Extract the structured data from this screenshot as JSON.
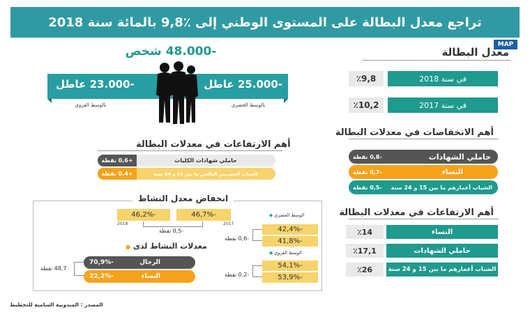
{
  "header": {
    "title": "تراجع معدل البطالة على المستوى الوطني إلى ٪9,8 بالمائة سنة 2018"
  },
  "logo": {
    "text": "MAP"
  },
  "unemployment_rate": {
    "title": "معدل البطالة",
    "rows": [
      {
        "label": "في سنة 2018",
        "value": "٪9,8"
      },
      {
        "label": "في سنة 2017",
        "value": "٪10,2"
      }
    ]
  },
  "persons": {
    "total": "-48.000 شخص",
    "urban": {
      "value": "-25.000 عاطل",
      "label": "بالوسط الحضري"
    },
    "rural": {
      "value": "-23.000 عاطل",
      "label": "بالوسط القروي"
    }
  },
  "decreases": {
    "title": "أهم الانخفاضات في معدلات البطالة",
    "rows": [
      {
        "label": "حاملي الشهادات",
        "value": "-0,8 نقطة"
      },
      {
        "label": "النساء",
        "value": "-0,7 نقطة"
      },
      {
        "label": "الشباب أعمارهم ما بين 15 و 24 سنة",
        "value": "-0,5 نقطة"
      }
    ]
  },
  "increases_left": {
    "title": "أهم الارتفاعات في معدلات البطالة",
    "rows": [
      {
        "label": "حاملي شهادات الكليات",
        "value": "+0,6 نقطة"
      },
      {
        "label": "الشباب الحضريين البالغين ما بين 15 و 24 سنة",
        "value": "+0,4 نقطة"
      }
    ]
  },
  "increases_right": {
    "title": "أهم الارتفاعات في معدلات البطالة",
    "rows": [
      {
        "label": "النساء",
        "value": "٪14"
      },
      {
        "label": "حاملي الشهادات",
        "value": "٪17,1"
      },
      {
        "label": "الشباب أعمارهم ما بين 15 و 24 سنة",
        "value": "٪26"
      }
    ]
  },
  "activity": {
    "title": "انخفاض معدل النشاط",
    "overall": {
      "v2018": "46,2%-",
      "y2018": "2018",
      "v2017": "46,7%-",
      "y2017": "2017",
      "diff": "-0,5 نقطة"
    },
    "urban": {
      "label": "الوسط الحضري",
      "v1": "42,4%-",
      "v2": "41,8%-",
      "diff": "-0,6 نقطة"
    },
    "rural": {
      "label": "الوسط القروي",
      "v1": "54,1%-",
      "v2": "53,9%-",
      "diff": "-0,2 نقطة"
    },
    "gender": {
      "title": "معدلات النشاط لدى",
      "men": {
        "label": "الرجال",
        "value": "70,9%-"
      },
      "women": {
        "label": "النساء",
        "value": "22,2%-"
      },
      "gap": "48,7 نقطة"
    }
  },
  "source": "المصدر : المندوبية السامية للتخطيط",
  "colors": {
    "teal": "#1f9a8e",
    "orange": "#f6a21a",
    "dark": "#555555",
    "yellow": "#f7d36b"
  }
}
